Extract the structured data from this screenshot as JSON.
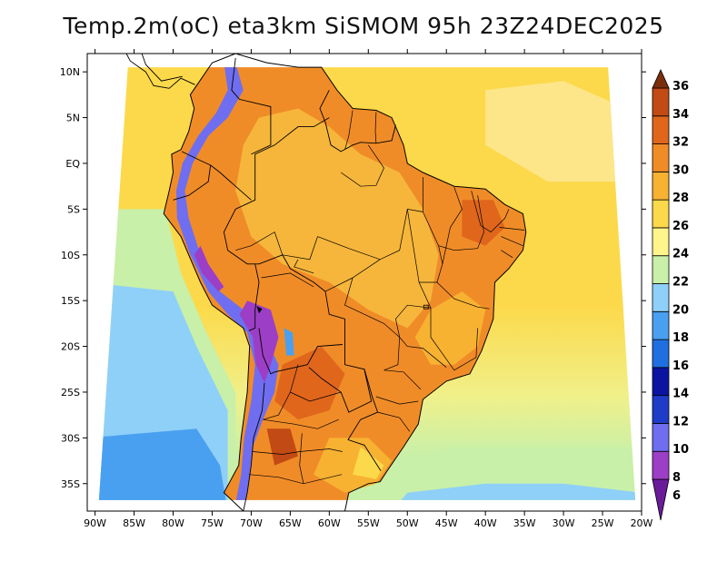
{
  "title": "Temp.2m(oC) eta3km SiSMOM 95h 23Z24DEC2025",
  "map": {
    "variable": "2m temperature",
    "units": "oC",
    "lon_range": [
      -91,
      -20
    ],
    "lat_range": [
      -38,
      12
    ],
    "lon_ticks": [
      {
        "value": -90,
        "label": "90W"
      },
      {
        "value": -85,
        "label": "85W"
      },
      {
        "value": -80,
        "label": "80W"
      },
      {
        "value": -75,
        "label": "75W"
      },
      {
        "value": -70,
        "label": "70W"
      },
      {
        "value": -65,
        "label": "65W"
      },
      {
        "value": -60,
        "label": "60W"
      },
      {
        "value": -55,
        "label": "55W"
      },
      {
        "value": -50,
        "label": "50W"
      },
      {
        "value": -45,
        "label": "45W"
      },
      {
        "value": -40,
        "label": "40W"
      },
      {
        "value": -35,
        "label": "35W"
      },
      {
        "value": -30,
        "label": "30W"
      },
      {
        "value": -25,
        "label": "25W"
      },
      {
        "value": -20,
        "label": "20W"
      }
    ],
    "lat_ticks": [
      {
        "value": 10,
        "label": "10N"
      },
      {
        "value": 5,
        "label": "5N"
      },
      {
        "value": 0,
        "label": "EQ"
      },
      {
        "value": -5,
        "label": "5S"
      },
      {
        "value": -10,
        "label": "10S"
      },
      {
        "value": -15,
        "label": "15S"
      },
      {
        "value": -20,
        "label": "20S"
      },
      {
        "value": -25,
        "label": "25S"
      },
      {
        "value": -30,
        "label": "30S"
      },
      {
        "value": -35,
        "label": "35S"
      }
    ],
    "domain_corners": [
      [
        -89.5,
        -36.8
      ],
      [
        -20.8,
        -36.8
      ],
      [
        -24.3,
        10.5
      ],
      [
        -85.8,
        10.5
      ]
    ]
  },
  "colorbar": {
    "levels": [
      6,
      8,
      10,
      12,
      14,
      16,
      18,
      20,
      22,
      24,
      26,
      28,
      30,
      32,
      34,
      36
    ],
    "colors": [
      "#6a1b9a",
      "#9c3fc6",
      "#6f6ef0",
      "#1e3cc8",
      "#0a14a0",
      "#1f6fe0",
      "#4aa0f0",
      "#8fd0f8",
      "#c8f0a8",
      "#fff58a",
      "#fcd94a",
      "#f7b232",
      "#f08c28",
      "#e0661c",
      "#c24a14",
      "#7a2e0c"
    ],
    "labels": [
      "6",
      "8",
      "10",
      "12",
      "14",
      "16",
      "18",
      "20",
      "22",
      "24",
      "26",
      "28",
      "30",
      "32",
      "34",
      "36"
    ]
  },
  "color_fields": {
    "cold_ocean": "#8fd0f8",
    "cool_ocean": "#c8f0a8",
    "warm_ocean": "#fcd94a",
    "hot_land": "#f08c28",
    "very_hot_land": "#e0661c",
    "andes": "#6f6ef0",
    "andes_peak": "#9c3fc6",
    "south_cold": "#4aa0f0"
  }
}
